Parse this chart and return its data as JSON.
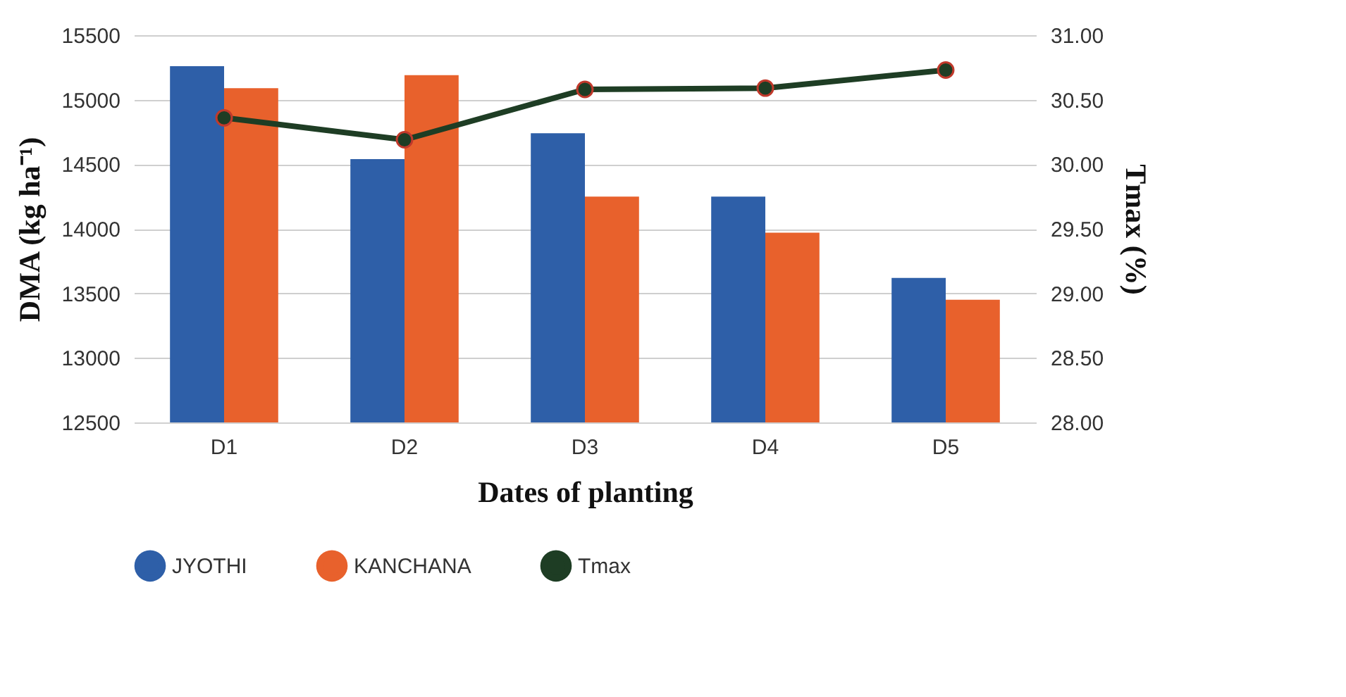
{
  "chart_data": {
    "type": "bar",
    "xlabel": "Dates of planting",
    "ylabel": "DMA (kg ha⁻¹)",
    "y2label": "Tmax (%)",
    "categories": [
      "D1",
      "D2",
      "D3",
      "D4",
      "D5"
    ],
    "series": [
      {
        "name": "JYOTHI",
        "color": "#2e5fa8",
        "values": [
          15260,
          14540,
          14740,
          14250,
          13620
        ]
      },
      {
        "name": "KANCHANA",
        "color": "#e8612c",
        "values": [
          15090,
          15190,
          14250,
          13970,
          13450
        ]
      },
      {
        "name": "Tmax",
        "type": "line",
        "axis": "y2",
        "color": "#1e3d24",
        "marker": "circle",
        "values": [
          30.36,
          30.19,
          30.58,
          30.59,
          30.73
        ]
      }
    ],
    "ylim": [
      12500,
      15500
    ],
    "yticks": [
      12500,
      13000,
      13500,
      14000,
      14500,
      15000,
      15500
    ],
    "y2lim": [
      28,
      31
    ],
    "y2ticks": [
      {
        "value": 28,
        "label": "28.00"
      },
      {
        "value": 28.5,
        "label": "28.50"
      },
      {
        "value": 29,
        "label": "29.00"
      },
      {
        "value": 29.5,
        "label": "29.50"
      },
      {
        "value": 30,
        "label": "30.00"
      },
      {
        "value": 30.5,
        "label": "30.50"
      },
      {
        "value": 31,
        "label": "31.00"
      }
    ],
    "grid": "y",
    "legend": "bottom"
  }
}
